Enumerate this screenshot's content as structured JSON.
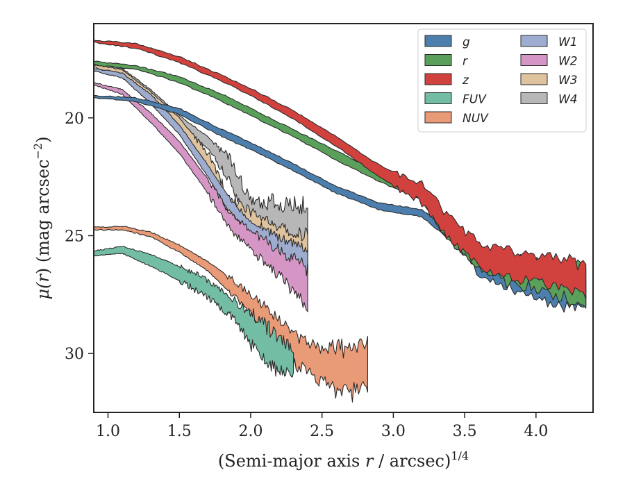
{
  "chart_data": {
    "type": "area",
    "xlabel": "(Semi-major axis r / arcsec)^{1/4}",
    "ylabel": "μ(r) (mag arcsec^{-2})",
    "xlim": [
      0.9,
      4.4
    ],
    "ylim": [
      32.5,
      16.0
    ],
    "y_inverted": true,
    "x_ticks": [
      1.0,
      1.5,
      2.0,
      2.5,
      3.0,
      3.5,
      4.0
    ],
    "x_tick_labels": [
      "1.0",
      "1.5",
      "2.0",
      "2.5",
      "3.0",
      "3.5",
      "4.0"
    ],
    "y_ticks": [
      20,
      25,
      30
    ],
    "y_tick_labels": [
      "20",
      "25",
      "30"
    ],
    "grid": false,
    "legend_position": "top-right",
    "legend_columns": 2,
    "series": [
      {
        "name": "g",
        "color": "#4c7fad",
        "points": [
          [
            0.9,
            19.05,
            19.15
          ],
          [
            1.2,
            19.15,
            19.3
          ],
          [
            1.5,
            19.6,
            19.85
          ],
          [
            1.8,
            20.5,
            20.8
          ],
          [
            2.0,
            21.05,
            21.35
          ],
          [
            2.3,
            21.95,
            22.25
          ],
          [
            2.6,
            22.9,
            23.2
          ],
          [
            2.9,
            23.6,
            23.9
          ],
          [
            3.2,
            23.9,
            24.2
          ],
          [
            3.4,
            24.8,
            25.2
          ],
          [
            3.6,
            25.8,
            26.6
          ],
          [
            3.8,
            26.2,
            27.2
          ],
          [
            4.0,
            26.4,
            27.6
          ],
          [
            4.2,
            26.6,
            28.0
          ],
          [
            4.35,
            26.8,
            28.3
          ]
        ]
      },
      {
        "name": "r",
        "color": "#5aa05a",
        "points": [
          [
            0.9,
            17.6,
            17.75
          ],
          [
            1.2,
            17.8,
            17.95
          ],
          [
            1.5,
            18.25,
            18.5
          ],
          [
            1.8,
            19.0,
            19.3
          ],
          [
            2.0,
            19.6,
            19.9
          ],
          [
            2.3,
            20.5,
            20.8
          ],
          [
            2.6,
            21.4,
            21.8
          ],
          [
            2.9,
            22.3,
            22.7
          ],
          [
            3.2,
            22.9,
            23.5
          ],
          [
            3.4,
            24.6,
            25.3
          ],
          [
            3.6,
            25.6,
            26.4
          ],
          [
            3.8,
            25.9,
            27.0
          ],
          [
            4.0,
            26.0,
            27.2
          ],
          [
            4.2,
            26.2,
            27.6
          ],
          [
            4.35,
            26.4,
            27.9
          ]
        ]
      },
      {
        "name": "z",
        "color": "#d1423e",
        "points": [
          [
            0.9,
            16.7,
            16.8
          ],
          [
            1.2,
            16.85,
            17.05
          ],
          [
            1.5,
            17.4,
            17.65
          ],
          [
            1.8,
            18.2,
            18.45
          ],
          [
            2.0,
            18.75,
            19.05
          ],
          [
            2.3,
            19.7,
            20.05
          ],
          [
            2.6,
            20.8,
            21.2
          ],
          [
            2.9,
            22.0,
            22.5
          ],
          [
            3.2,
            22.8,
            23.6
          ],
          [
            3.4,
            24.3,
            25.2
          ],
          [
            3.6,
            25.3,
            26.3
          ],
          [
            3.8,
            25.6,
            26.8
          ],
          [
            4.0,
            25.8,
            27.0
          ],
          [
            4.2,
            26.0,
            27.3
          ],
          [
            4.35,
            26.3,
            27.7
          ]
        ]
      },
      {
        "name": "FUV",
        "color": "#74bda5",
        "points": [
          [
            0.9,
            25.65,
            25.85
          ],
          [
            1.1,
            25.45,
            25.75
          ],
          [
            1.3,
            25.8,
            26.3
          ],
          [
            1.5,
            26.3,
            26.9
          ],
          [
            1.7,
            26.9,
            27.6
          ],
          [
            1.9,
            27.8,
            28.6
          ],
          [
            2.0,
            28.3,
            29.6
          ],
          [
            2.1,
            28.8,
            30.4
          ],
          [
            2.2,
            29.3,
            30.8
          ],
          [
            2.3,
            29.8,
            30.9
          ]
        ]
      },
      {
        "name": "NUV",
        "color": "#e99a77",
        "points": [
          [
            0.9,
            24.65,
            24.75
          ],
          [
            1.1,
            24.6,
            24.75
          ],
          [
            1.3,
            24.85,
            25.05
          ],
          [
            1.5,
            25.4,
            25.7
          ],
          [
            1.7,
            26.1,
            26.5
          ],
          [
            1.9,
            27.0,
            27.7
          ],
          [
            2.1,
            28.0,
            29.0
          ],
          [
            2.3,
            29.2,
            30.4
          ],
          [
            2.5,
            29.8,
            31.2
          ],
          [
            2.6,
            29.8,
            31.7
          ],
          [
            2.82,
            29.7,
            31.6
          ]
        ]
      },
      {
        "name": "W1",
        "color": "#9eadcf",
        "points": [
          [
            0.9,
            17.9,
            18.0
          ],
          [
            1.1,
            18.1,
            18.3
          ],
          [
            1.3,
            19.0,
            19.4
          ],
          [
            1.5,
            20.3,
            20.7
          ],
          [
            1.7,
            22.0,
            22.5
          ],
          [
            1.85,
            23.4,
            24.0
          ],
          [
            2.0,
            24.3,
            25.0
          ],
          [
            2.2,
            25.1,
            26.1
          ],
          [
            2.4,
            25.7,
            27.0
          ]
        ]
      },
      {
        "name": "W2",
        "color": "#d696c5",
        "points": [
          [
            0.9,
            18.5,
            18.6
          ],
          [
            1.1,
            18.8,
            19.0
          ],
          [
            1.3,
            19.8,
            20.2
          ],
          [
            1.5,
            21.0,
            21.5
          ],
          [
            1.7,
            22.6,
            23.2
          ],
          [
            1.85,
            24.0,
            24.7
          ],
          [
            2.0,
            24.8,
            25.6
          ],
          [
            2.2,
            25.6,
            26.7
          ],
          [
            2.4,
            26.4,
            28.0
          ]
        ]
      },
      {
        "name": "W3",
        "color": "#dfc39f",
        "points": [
          [
            0.9,
            17.75,
            17.85
          ],
          [
            1.1,
            17.95,
            18.2
          ],
          [
            1.3,
            18.9,
            19.3
          ],
          [
            1.5,
            20.0,
            20.5
          ],
          [
            1.7,
            21.5,
            22.2
          ],
          [
            1.85,
            23.4,
            24.4
          ],
          [
            2.0,
            24.0,
            25.0
          ],
          [
            2.2,
            24.6,
            25.8
          ],
          [
            2.4,
            25.0,
            26.5
          ]
        ]
      },
      {
        "name": "W4",
        "color": "#b7b7b7",
        "points": [
          [
            0.9,
            17.65,
            17.75
          ],
          [
            1.1,
            17.9,
            18.1
          ],
          [
            1.3,
            18.8,
            19.2
          ],
          [
            1.5,
            19.9,
            20.3
          ],
          [
            1.7,
            20.8,
            21.3
          ],
          [
            1.85,
            21.7,
            22.6
          ],
          [
            2.0,
            23.5,
            24.8
          ],
          [
            2.2,
            23.6,
            25.4
          ],
          [
            2.4,
            23.7,
            25.7
          ]
        ]
      }
    ]
  }
}
